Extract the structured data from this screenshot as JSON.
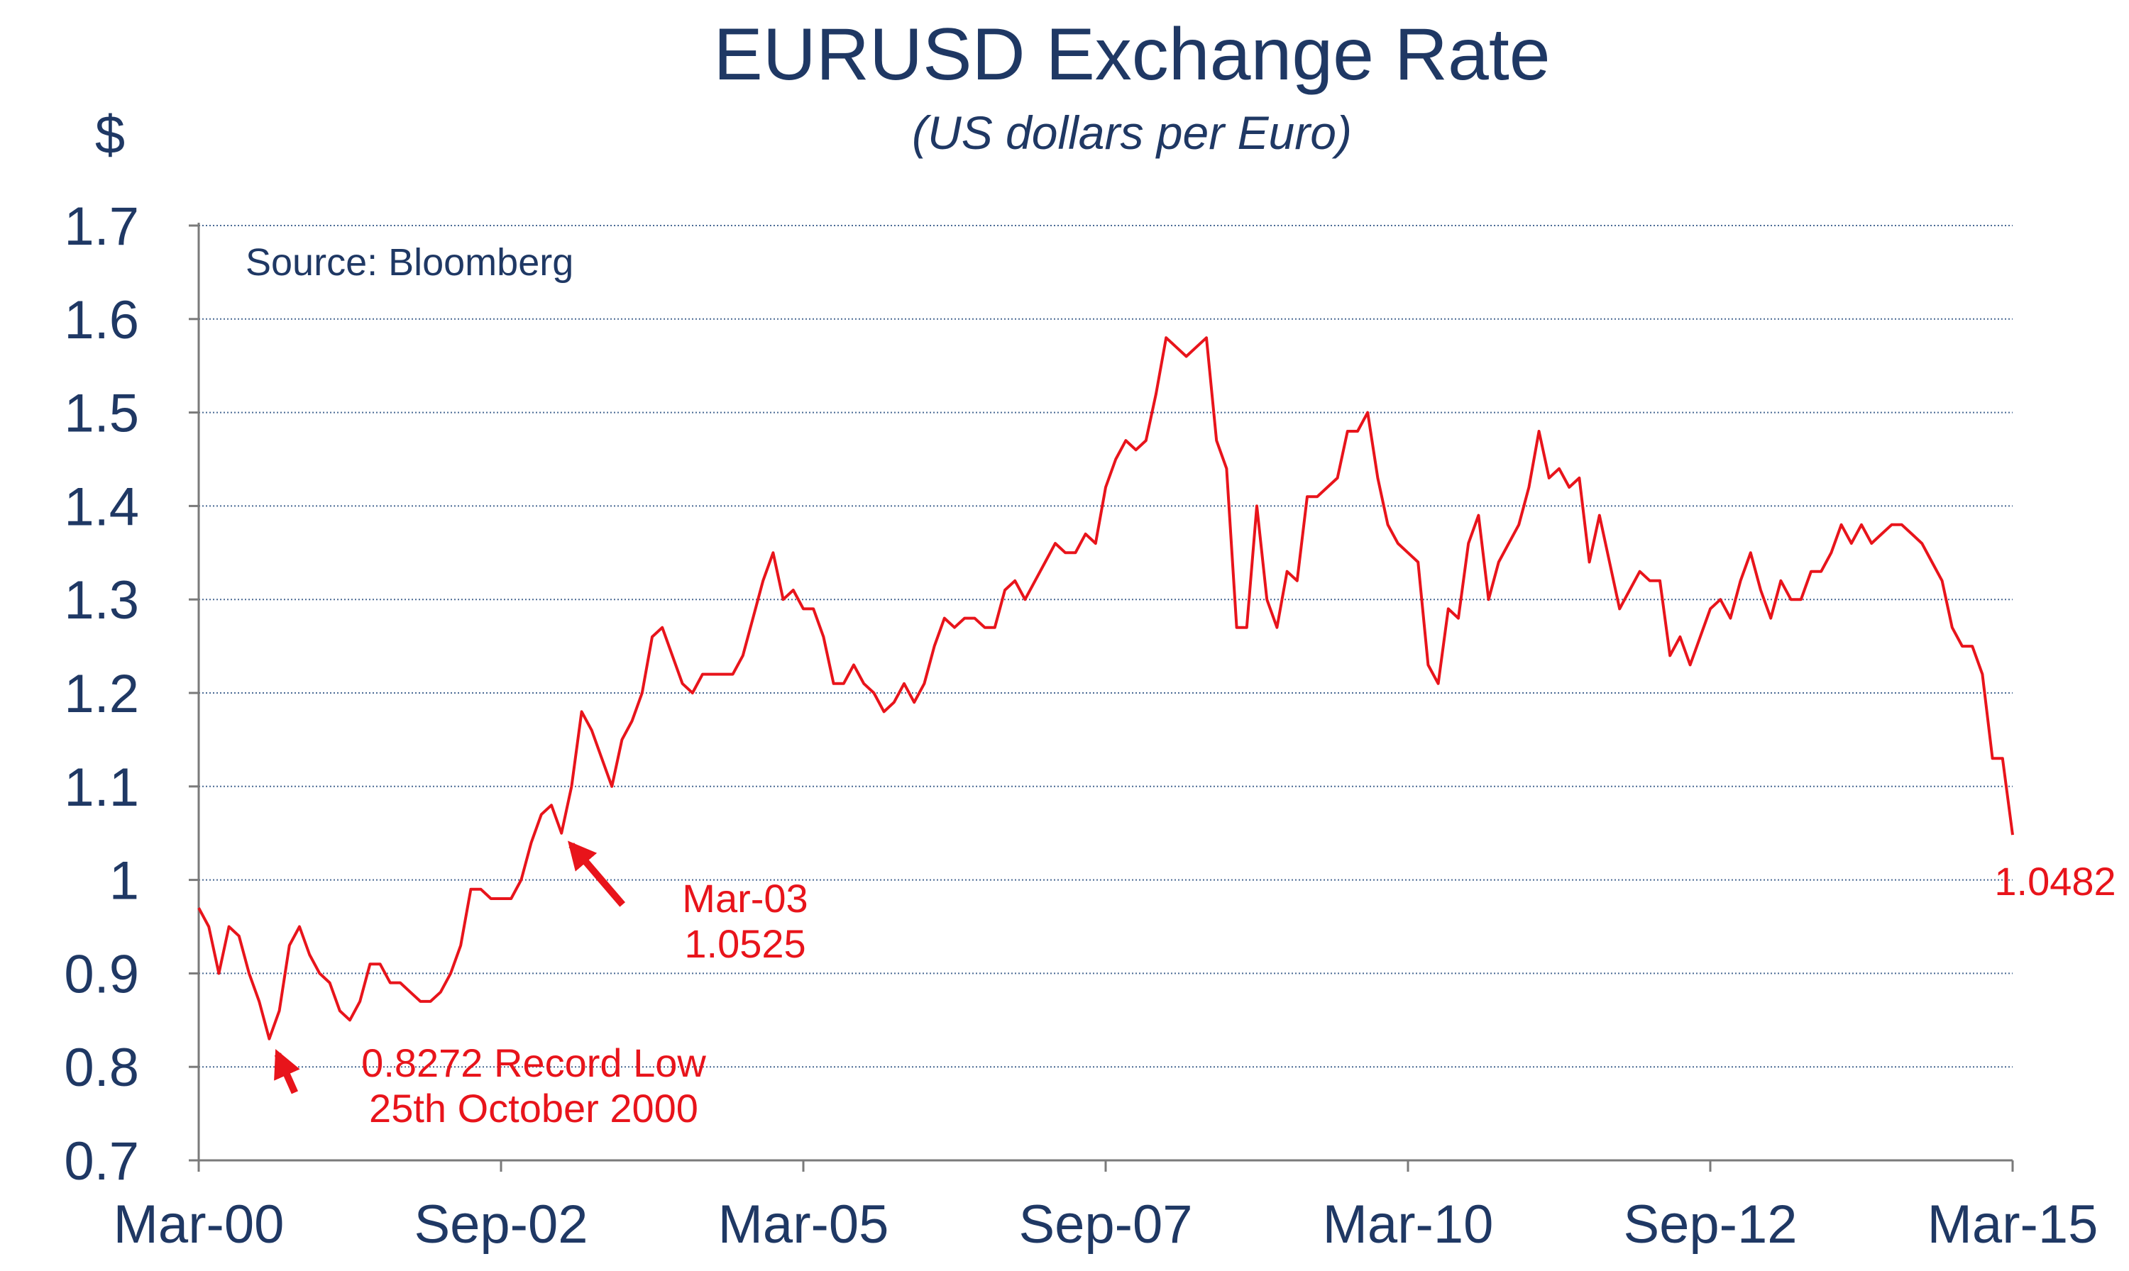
{
  "chart_data": {
    "type": "line",
    "title": "EURUSD Exchange Rate",
    "subtitle": "(US dollars per Euro)",
    "ylabel": "$",
    "source": "Source: Bloomberg",
    "ylim": [
      0.7,
      1.7
    ],
    "y_ticks": [
      "0.7",
      "0.8",
      "0.9",
      "1",
      "1.1",
      "1.2",
      "1.3",
      "1.4",
      "1.5",
      "1.6",
      "1.7"
    ],
    "x_ticks": [
      "Mar-00",
      "Sep-02",
      "Mar-05",
      "Sep-07",
      "Mar-10",
      "Sep-12",
      "Mar-15"
    ],
    "xlim": [
      "2000-03",
      "2015-03"
    ],
    "grid": true,
    "series": [
      {
        "color": "#e8141b",
        "x": [
          "2000-03",
          "2000-04",
          "2000-05",
          "2000-06",
          "2000-07",
          "2000-08",
          "2000-09",
          "2000-10",
          "2000-11",
          "2000-12",
          "2001-01",
          "2001-02",
          "2001-03",
          "2001-04",
          "2001-05",
          "2001-06",
          "2001-07",
          "2001-08",
          "2001-09",
          "2001-10",
          "2001-11",
          "2001-12",
          "2002-01",
          "2002-02",
          "2002-03",
          "2002-04",
          "2002-05",
          "2002-06",
          "2002-07",
          "2002-08",
          "2002-09",
          "2002-10",
          "2002-11",
          "2002-12",
          "2003-01",
          "2003-02",
          "2003-03",
          "2003-04",
          "2003-05",
          "2003-06",
          "2003-07",
          "2003-08",
          "2003-09",
          "2003-10",
          "2003-11",
          "2003-12",
          "2004-01",
          "2004-02",
          "2004-03",
          "2004-04",
          "2004-05",
          "2004-06",
          "2004-07",
          "2004-08",
          "2004-09",
          "2004-10",
          "2004-11",
          "2004-12",
          "2005-01",
          "2005-02",
          "2005-03",
          "2005-04",
          "2005-05",
          "2005-06",
          "2005-07",
          "2005-08",
          "2005-09",
          "2005-10",
          "2005-11",
          "2005-12",
          "2006-01",
          "2006-02",
          "2006-03",
          "2006-04",
          "2006-05",
          "2006-06",
          "2006-07",
          "2006-08",
          "2006-09",
          "2006-10",
          "2006-11",
          "2006-12",
          "2007-01",
          "2007-02",
          "2007-03",
          "2007-04",
          "2007-05",
          "2007-06",
          "2007-07",
          "2007-08",
          "2007-09",
          "2007-10",
          "2007-11",
          "2007-12",
          "2008-01",
          "2008-02",
          "2008-03",
          "2008-04",
          "2008-05",
          "2008-06",
          "2008-07",
          "2008-08",
          "2008-09",
          "2008-10",
          "2008-11",
          "2008-12",
          "2009-01",
          "2009-02",
          "2009-03",
          "2009-04",
          "2009-05",
          "2009-06",
          "2009-07",
          "2009-08",
          "2009-09",
          "2009-10",
          "2009-11",
          "2009-12",
          "2010-01",
          "2010-02",
          "2010-03",
          "2010-04",
          "2010-05",
          "2010-06",
          "2010-07",
          "2010-08",
          "2010-09",
          "2010-10",
          "2010-11",
          "2010-12",
          "2011-01",
          "2011-02",
          "2011-03",
          "2011-04",
          "2011-05",
          "2011-06",
          "2011-07",
          "2011-08",
          "2011-09",
          "2011-10",
          "2011-11",
          "2011-12",
          "2012-01",
          "2012-02",
          "2012-03",
          "2012-04",
          "2012-05",
          "2012-06",
          "2012-07",
          "2012-08",
          "2012-09",
          "2012-10",
          "2012-11",
          "2012-12",
          "2013-01",
          "2013-02",
          "2013-03",
          "2013-04",
          "2013-05",
          "2013-06",
          "2013-07",
          "2013-08",
          "2013-09",
          "2013-10",
          "2013-11",
          "2013-12",
          "2014-01",
          "2014-02",
          "2014-03",
          "2014-04",
          "2014-05",
          "2014-06",
          "2014-07",
          "2014-08",
          "2014-09",
          "2014-10",
          "2014-11",
          "2014-12",
          "2015-01",
          "2015-02",
          "2015-03"
        ],
        "values": [
          0.97,
          0.95,
          0.9,
          0.95,
          0.94,
          0.9,
          0.87,
          0.83,
          0.86,
          0.93,
          0.95,
          0.92,
          0.9,
          0.89,
          0.86,
          0.85,
          0.87,
          0.91,
          0.91,
          0.89,
          0.89,
          0.88,
          0.87,
          0.87,
          0.88,
          0.9,
          0.93,
          0.99,
          0.99,
          0.98,
          0.98,
          0.98,
          1.0,
          1.04,
          1.07,
          1.08,
          1.05,
          1.1,
          1.18,
          1.16,
          1.13,
          1.1,
          1.15,
          1.17,
          1.2,
          1.26,
          1.27,
          1.24,
          1.21,
          1.2,
          1.22,
          1.22,
          1.22,
          1.22,
          1.24,
          1.28,
          1.32,
          1.35,
          1.3,
          1.31,
          1.29,
          1.29,
          1.26,
          1.21,
          1.21,
          1.23,
          1.21,
          1.2,
          1.18,
          1.19,
          1.21,
          1.19,
          1.21,
          1.25,
          1.28,
          1.27,
          1.28,
          1.28,
          1.27,
          1.27,
          1.31,
          1.32,
          1.3,
          1.32,
          1.34,
          1.36,
          1.35,
          1.35,
          1.37,
          1.36,
          1.42,
          1.45,
          1.47,
          1.46,
          1.47,
          1.52,
          1.58,
          1.57,
          1.56,
          1.57,
          1.58,
          1.47,
          1.44,
          1.27,
          1.27,
          1.4,
          1.3,
          1.27,
          1.33,
          1.32,
          1.41,
          1.41,
          1.42,
          1.43,
          1.48,
          1.48,
          1.5,
          1.43,
          1.38,
          1.36,
          1.35,
          1.34,
          1.23,
          1.21,
          1.29,
          1.28,
          1.36,
          1.39,
          1.3,
          1.34,
          1.36,
          1.38,
          1.42,
          1.48,
          1.43,
          1.44,
          1.42,
          1.43,
          1.34,
          1.39,
          1.34,
          1.29,
          1.31,
          1.33,
          1.32,
          1.32,
          1.24,
          1.26,
          1.23,
          1.26,
          1.29,
          1.3,
          1.28,
          1.32,
          1.35,
          1.31,
          1.28,
          1.32,
          1.3,
          1.3,
          1.33,
          1.33,
          1.35,
          1.38,
          1.36,
          1.38,
          1.36,
          1.37,
          1.38,
          1.38,
          1.37,
          1.36,
          1.34,
          1.32,
          1.27,
          1.25,
          1.25,
          1.22,
          1.13,
          1.13,
          1.0482
        ]
      }
    ],
    "annotations": [
      {
        "lines": [
          "0.8272 Record Low",
          "25th October 2000"
        ],
        "x": "2000-10",
        "y": 0.8272
      },
      {
        "lines": [
          "Mar-03",
          "1.0525"
        ],
        "x": "2003-03",
        "y": 1.0525
      },
      {
        "lines": [
          "1.0482"
        ],
        "x": "2015-03",
        "y": 1.0482
      }
    ]
  }
}
